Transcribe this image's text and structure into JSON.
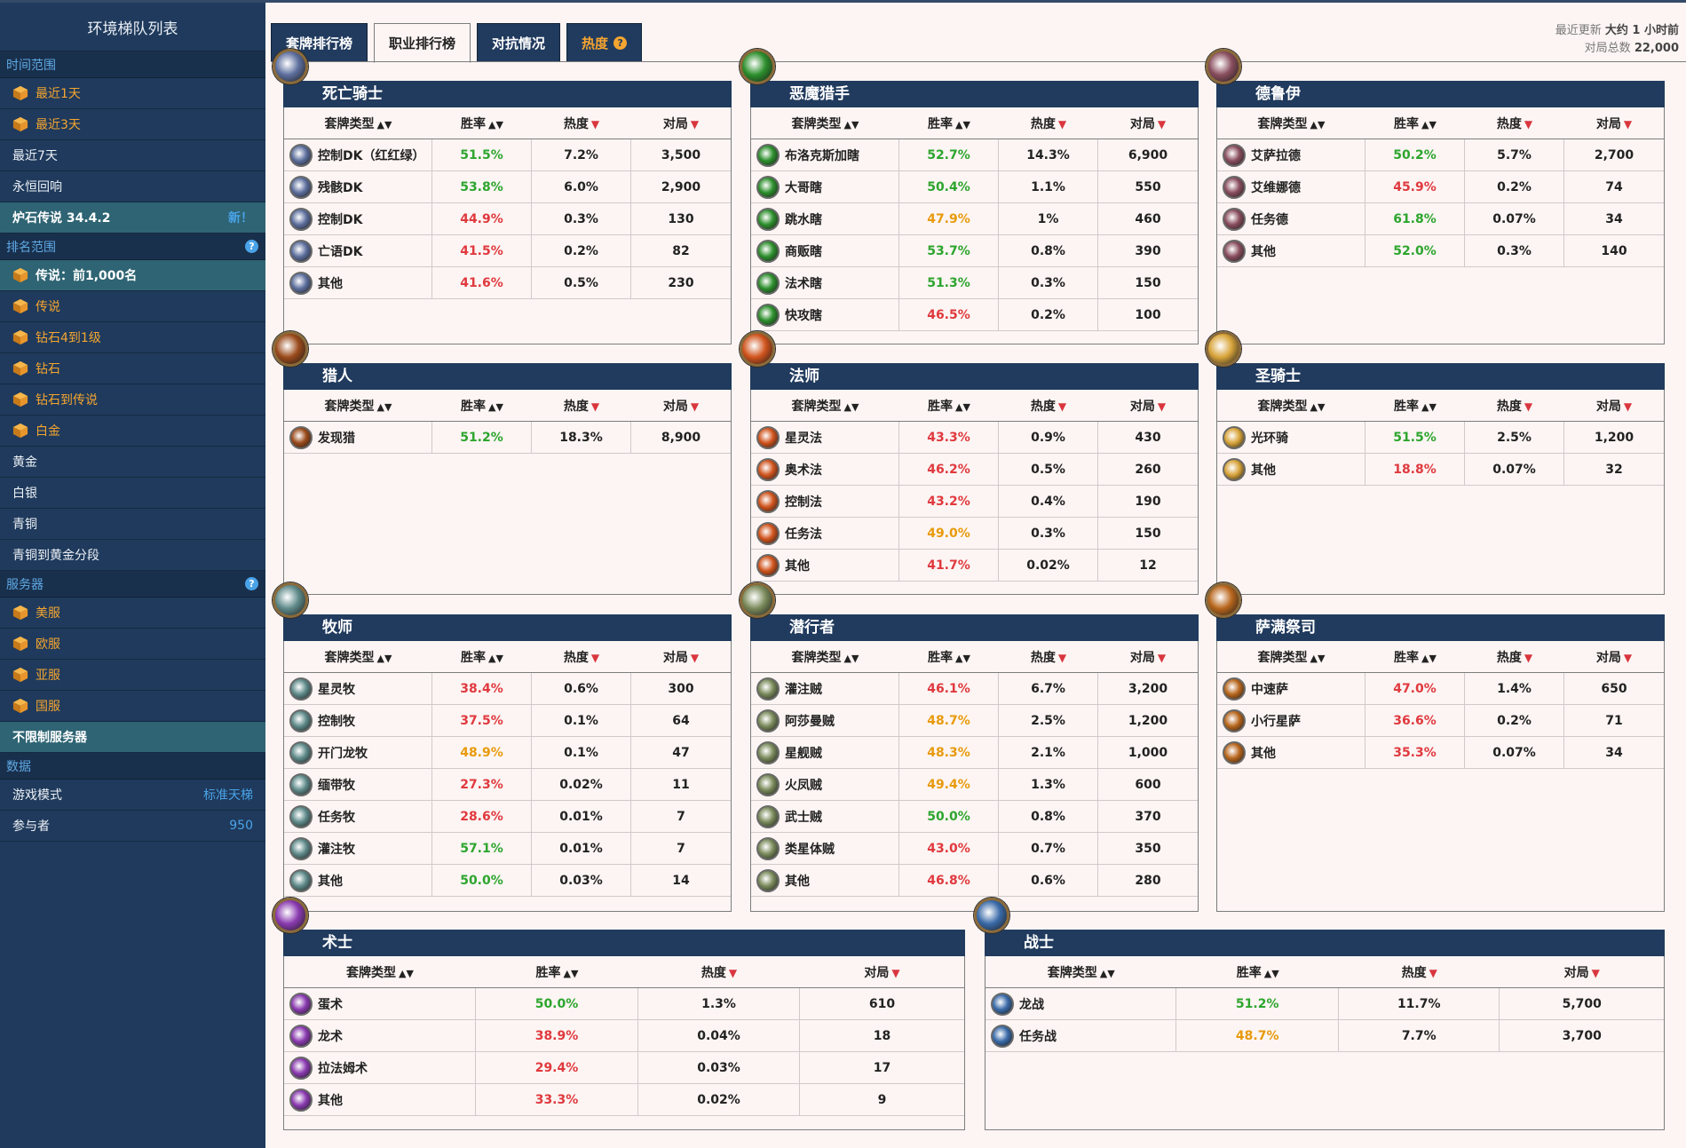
{
  "sidebar": {
    "title": "环境梯队列表",
    "sections": [
      {
        "header": "时间范围",
        "help": false,
        "items": [
          {
            "label": "最近1天",
            "icon": "cube-icon",
            "style": "orange"
          },
          {
            "label": "最近3天",
            "icon": "cube-icon",
            "style": "orange"
          },
          {
            "label": "最近7天",
            "icon": "",
            "style": "plain"
          },
          {
            "label": "永恒回响",
            "icon": "",
            "style": "plain"
          },
          {
            "label": "炉石传说 34.4.2",
            "icon": "",
            "style": "selected",
            "badge": "新！"
          }
        ]
      },
      {
        "header": "排名范围",
        "help": true,
        "items": [
          {
            "label": "传说：前1,000名",
            "icon": "cube-icon",
            "style": "selected"
          },
          {
            "label": "传说",
            "icon": "cube-icon",
            "style": "orange"
          },
          {
            "label": "钻石4到1级",
            "icon": "cube-icon",
            "style": "orange"
          },
          {
            "label": "钻石",
            "icon": "cube-icon",
            "style": "orange"
          },
          {
            "label": "钻石到传说",
            "icon": "cube-icon",
            "style": "orange"
          },
          {
            "label": "白金",
            "icon": "cube-icon",
            "style": "orange"
          },
          {
            "label": "黄金",
            "icon": "",
            "style": "plain"
          },
          {
            "label": "白银",
            "icon": "",
            "style": "plain"
          },
          {
            "label": "青铜",
            "icon": "",
            "style": "plain"
          },
          {
            "label": "青铜到黄金分段",
            "icon": "",
            "style": "plain"
          }
        ]
      },
      {
        "header": "服务器",
        "help": true,
        "items": [
          {
            "label": "美服",
            "icon": "cube-icon",
            "style": "orange"
          },
          {
            "label": "欧服",
            "icon": "cube-icon",
            "style": "orange"
          },
          {
            "label": "亚服",
            "icon": "cube-icon",
            "style": "orange"
          },
          {
            "label": "国服",
            "icon": "cube-icon",
            "style": "orange"
          },
          {
            "label": "不限制服务器",
            "icon": "",
            "style": "selected"
          }
        ]
      },
      {
        "header": "数据",
        "help": false,
        "items": [
          {
            "label": "游戏模式",
            "icon": "",
            "style": "plain",
            "badge": "标准天梯"
          },
          {
            "label": "参与者",
            "icon": "",
            "style": "plain",
            "badge": "950"
          }
        ]
      }
    ]
  },
  "tabs": [
    {
      "label": "套牌排行榜",
      "active": false
    },
    {
      "label": "职业排行榜",
      "active": true
    },
    {
      "label": "对抗情况",
      "active": false
    },
    {
      "label": "热度",
      "active": false,
      "heat": true
    }
  ],
  "updated": {
    "line1_prefix": "最近更新",
    "line1_value": "大约 1 小时前",
    "line2_prefix": "对局总数",
    "line2_value": "22,000"
  },
  "columns": {
    "deck": "套牌类型",
    "winrate": "胜率",
    "popularity": "热度",
    "games": "对局"
  },
  "colors": {
    "green": "#2da52d",
    "red": "#e0393e",
    "orange": "#e89a0c",
    "header_bg": "#213b5e"
  },
  "classes": [
    {
      "key": "death-knight",
      "name": "死亡骑士",
      "icon_color": "#5d6f9e",
      "decks": [
        {
          "name": "控制DK（红红绿）",
          "winrate": "51.5%",
          "wr_color": "green",
          "popularity": "7.2%",
          "games": "3,500"
        },
        {
          "name": "残骸DK",
          "winrate": "53.8%",
          "wr_color": "green",
          "popularity": "6.0%",
          "games": "2,900"
        },
        {
          "name": "控制DK",
          "winrate": "44.9%",
          "wr_color": "red",
          "popularity": "0.3%",
          "games": "130"
        },
        {
          "name": "亡语DK",
          "winrate": "41.5%",
          "wr_color": "red",
          "popularity": "0.2%",
          "games": "82"
        },
        {
          "name": "其他",
          "winrate": "41.6%",
          "wr_color": "red",
          "popularity": "0.5%",
          "games": "230"
        }
      ]
    },
    {
      "key": "demon-hunter",
      "name": "恶魔猎手",
      "icon_color": "#2c8f2c",
      "decks": [
        {
          "name": "布洛克斯加瞎",
          "winrate": "52.7%",
          "wr_color": "green",
          "popularity": "14.3%",
          "games": "6,900"
        },
        {
          "name": "大哥瞎",
          "winrate": "50.4%",
          "wr_color": "green",
          "popularity": "1.1%",
          "games": "550"
        },
        {
          "name": "跳水瞎",
          "winrate": "47.9%",
          "wr_color": "orange",
          "popularity": "1%",
          "games": "460"
        },
        {
          "name": "商贩瞎",
          "winrate": "53.7%",
          "wr_color": "green",
          "popularity": "0.8%",
          "games": "390"
        },
        {
          "name": "法术瞎",
          "winrate": "51.3%",
          "wr_color": "green",
          "popularity": "0.3%",
          "games": "150"
        },
        {
          "name": "快攻瞎",
          "winrate": "46.5%",
          "wr_color": "red",
          "popularity": "0.2%",
          "games": "100"
        }
      ]
    },
    {
      "key": "druid",
      "name": "德鲁伊",
      "icon_color": "#8a4e5e",
      "decks": [
        {
          "name": "艾萨拉德",
          "winrate": "50.2%",
          "wr_color": "green",
          "popularity": "5.7%",
          "games": "2,700"
        },
        {
          "name": "艾维娜德",
          "winrate": "45.9%",
          "wr_color": "red",
          "popularity": "0.2%",
          "games": "74"
        },
        {
          "name": "任务德",
          "winrate": "61.8%",
          "wr_color": "green",
          "popularity": "0.07%",
          "games": "34"
        },
        {
          "name": "其他",
          "winrate": "52.0%",
          "wr_color": "green",
          "popularity": "0.3%",
          "games": "140"
        }
      ]
    },
    {
      "key": "hunter",
      "name": "猎人",
      "icon_color": "#9a4a1a",
      "decks": [
        {
          "name": "发现猎",
          "winrate": "51.2%",
          "wr_color": "green",
          "popularity": "18.3%",
          "games": "8,900"
        }
      ]
    },
    {
      "key": "mage",
      "name": "法师",
      "icon_color": "#d0531c",
      "decks": [
        {
          "name": "星灵法",
          "winrate": "43.3%",
          "wr_color": "red",
          "popularity": "0.9%",
          "games": "430"
        },
        {
          "name": "奥术法",
          "winrate": "46.2%",
          "wr_color": "red",
          "popularity": "0.5%",
          "games": "260"
        },
        {
          "name": "控制法",
          "winrate": "43.2%",
          "wr_color": "red",
          "popularity": "0.4%",
          "games": "190"
        },
        {
          "name": "任务法",
          "winrate": "49.0%",
          "wr_color": "orange",
          "popularity": "0.3%",
          "games": "150"
        },
        {
          "name": "其他",
          "winrate": "41.7%",
          "wr_color": "red",
          "popularity": "0.02%",
          "games": "12"
        }
      ]
    },
    {
      "key": "paladin",
      "name": "圣骑士",
      "icon_color": "#d8a43a",
      "decks": [
        {
          "name": "光环骑",
          "winrate": "51.5%",
          "wr_color": "green",
          "popularity": "2.5%",
          "games": "1,200"
        },
        {
          "name": "其他",
          "winrate": "18.8%",
          "wr_color": "red",
          "popularity": "0.07%",
          "games": "32"
        }
      ]
    },
    {
      "key": "priest",
      "name": "牧师",
      "icon_color": "#5f8a8a",
      "decks": [
        {
          "name": "星灵牧",
          "winrate": "38.4%",
          "wr_color": "red",
          "popularity": "0.6%",
          "games": "300"
        },
        {
          "name": "控制牧",
          "winrate": "37.5%",
          "wr_color": "red",
          "popularity": "0.1%",
          "games": "64"
        },
        {
          "name": "开门龙牧",
          "winrate": "48.9%",
          "wr_color": "orange",
          "popularity": "0.1%",
          "games": "47"
        },
        {
          "name": "缅带牧",
          "winrate": "27.3%",
          "wr_color": "red",
          "popularity": "0.02%",
          "games": "11"
        },
        {
          "name": "任务牧",
          "winrate": "28.6%",
          "wr_color": "red",
          "popularity": "0.01%",
          "games": "7"
        },
        {
          "name": "灌注牧",
          "winrate": "57.1%",
          "wr_color": "green",
          "popularity": "0.01%",
          "games": "7"
        },
        {
          "name": "其他",
          "winrate": "50.0%",
          "wr_color": "green",
          "popularity": "0.03%",
          "games": "14"
        }
      ]
    },
    {
      "key": "rogue",
      "name": "潜行者",
      "icon_color": "#7a8a5a",
      "decks": [
        {
          "name": "灌注贼",
          "winrate": "46.1%",
          "wr_color": "red",
          "popularity": "6.7%",
          "games": "3,200"
        },
        {
          "name": "阿莎曼贼",
          "winrate": "48.7%",
          "wr_color": "orange",
          "popularity": "2.5%",
          "games": "1,200"
        },
        {
          "name": "星舰贼",
          "winrate": "48.3%",
          "wr_color": "orange",
          "popularity": "2.1%",
          "games": "1,000"
        },
        {
          "name": "火凤贼",
          "winrate": "49.4%",
          "wr_color": "orange",
          "popularity": "1.3%",
          "games": "600"
        },
        {
          "name": "武士贼",
          "winrate": "50.0%",
          "wr_color": "green",
          "popularity": "0.8%",
          "games": "370"
        },
        {
          "name": "类星体贼",
          "winrate": "43.0%",
          "wr_color": "red",
          "popularity": "0.7%",
          "games": "350"
        },
        {
          "name": "其他",
          "winrate": "46.8%",
          "wr_color": "red",
          "popularity": "0.6%",
          "games": "280"
        }
      ]
    },
    {
      "key": "shaman",
      "name": "萨满祭司",
      "icon_color": "#b8661c",
      "decks": [
        {
          "name": "中速萨",
          "winrate": "47.0%",
          "wr_color": "red",
          "popularity": "1.4%",
          "games": "650"
        },
        {
          "name": "小行星萨",
          "winrate": "36.6%",
          "wr_color": "red",
          "popularity": "0.2%",
          "games": "71"
        },
        {
          "name": "其他",
          "winrate": "35.3%",
          "wr_color": "red",
          "popularity": "0.07%",
          "games": "34"
        }
      ]
    },
    {
      "key": "warlock",
      "name": "术士",
      "icon_color": "#8a3ab0",
      "decks": [
        {
          "name": "蛋术",
          "winrate": "50.0%",
          "wr_color": "green",
          "popularity": "1.3%",
          "games": "610"
        },
        {
          "name": "龙术",
          "winrate": "38.9%",
          "wr_color": "red",
          "popularity": "0.04%",
          "games": "18"
        },
        {
          "name": "拉法姆术",
          "winrate": "29.4%",
          "wr_color": "red",
          "popularity": "0.03%",
          "games": "17"
        },
        {
          "name": "其他",
          "winrate": "33.3%",
          "wr_color": "red",
          "popularity": "0.02%",
          "games": "9"
        }
      ]
    },
    {
      "key": "warrior",
      "name": "战士",
      "icon_color": "#3a6aa8",
      "decks": [
        {
          "name": "龙战",
          "winrate": "51.2%",
          "wr_color": "green",
          "popularity": "11.7%",
          "games": "5,700"
        },
        {
          "name": "任务战",
          "winrate": "48.7%",
          "wr_color": "orange",
          "popularity": "7.7%",
          "games": "3,700"
        }
      ]
    }
  ]
}
